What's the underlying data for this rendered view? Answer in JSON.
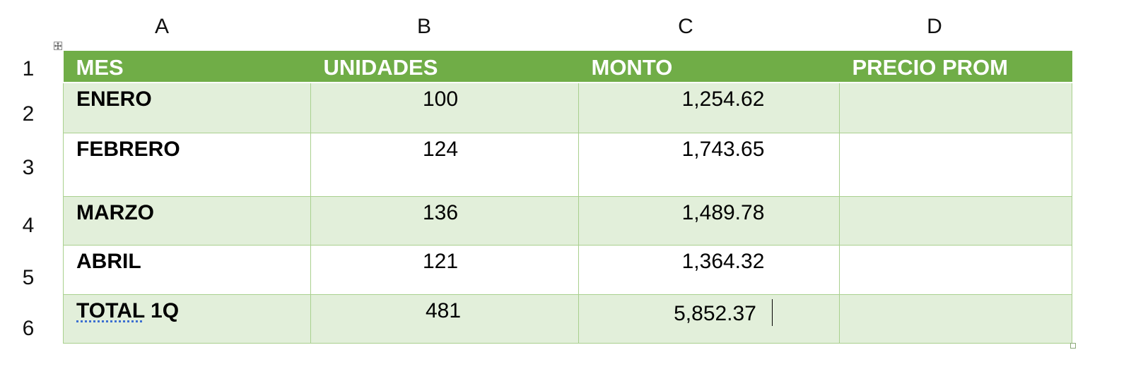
{
  "columns": [
    "A",
    "B",
    "C",
    "D"
  ],
  "rows": [
    "1",
    "2",
    "3",
    "4",
    "5",
    "6"
  ],
  "table": {
    "headers": [
      "MES",
      "UNIDADES",
      "MONTO",
      "PRECIO PROM"
    ],
    "data": [
      {
        "mes": "ENERO",
        "unidades": "100",
        "monto": "1,254.62",
        "precio": ""
      },
      {
        "mes": "FEBRERO",
        "unidades": "124",
        "monto": "1,743.65",
        "precio": ""
      },
      {
        "mes": "MARZO",
        "unidades": "136",
        "monto": "1,489.78",
        "precio": ""
      },
      {
        "mes": "ABRIL",
        "unidades": "121",
        "monto": "1,364.32",
        "precio": ""
      }
    ],
    "total": {
      "label_a": "TOTAL",
      "label_b": " 1Q",
      "unidades": "481",
      "monto": "5,852.37",
      "precio": ""
    }
  },
  "colors": {
    "header_bg": "#70ad47",
    "band_bg": "#e2efda",
    "grid": "#a9d08e"
  },
  "icons": {
    "move_handle": "move-icon",
    "resize_handle": "resize-icon"
  }
}
